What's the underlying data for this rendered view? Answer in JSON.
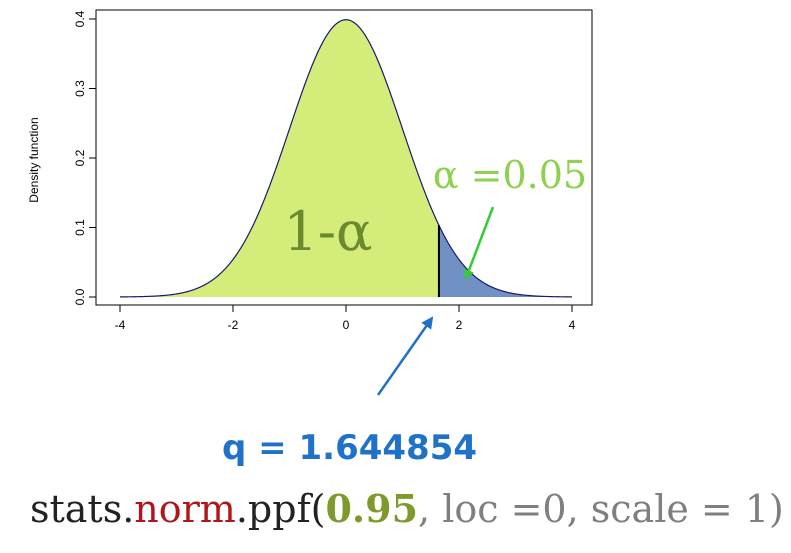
{
  "chart_data": {
    "type": "area",
    "distribution": "standard normal",
    "xlim": [
      -4,
      4
    ],
    "ylim": [
      0,
      0.4
    ],
    "x_ticks": [
      "-4",
      "-2",
      "0",
      "2",
      "4"
    ],
    "y_ticks": [
      "0.0",
      "0.1",
      "0.2",
      "0.3",
      "0.4"
    ],
    "ylabel": "Density function",
    "quantile": 1.644854,
    "regions": [
      {
        "label": "1-α",
        "from": -4,
        "to": 1.644854,
        "color": "#d4ec7a"
      },
      {
        "label": "α =0.05",
        "from": 1.644854,
        "to": 4,
        "color": "#7191c4"
      }
    ],
    "curve_color": "#1a1a6e"
  },
  "annotations": {
    "left_region_label": "1-α",
    "alpha_label": "α =0.05",
    "alpha_color": "#8fd14f",
    "arrow_green": "#33cc33",
    "arrow_blue": "#1f72c8",
    "q_label": "q = 1.644854"
  },
  "code": {
    "prefix": "stats.",
    "fn": "norm",
    "call": ".ppf(",
    "prob": "0.95",
    "args": ", loc =0, scale = 1)"
  }
}
